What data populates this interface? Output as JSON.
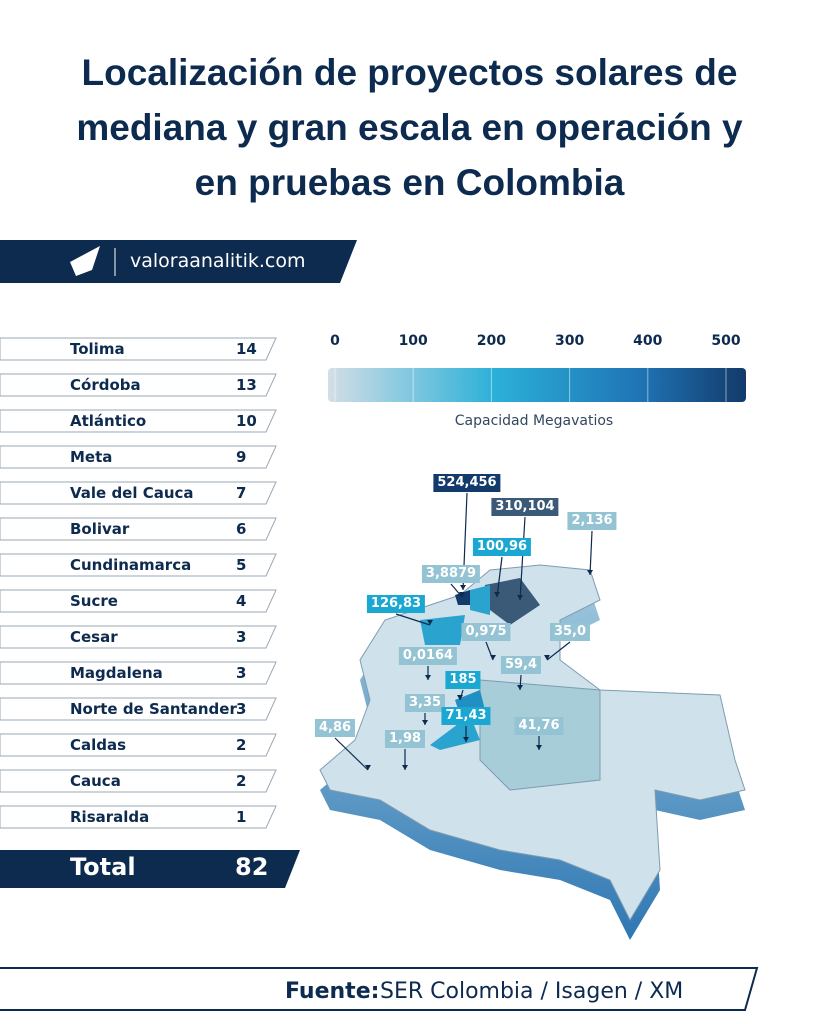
{
  "header": {
    "title": [
      "Localización de proyectos solares de",
      "mediana y gran escala en operación y",
      "en pruebas en Colombia"
    ],
    "brand": "valoraanalitik.com"
  },
  "table": {
    "rows": [
      [
        "Tolima",
        "14"
      ],
      [
        "Córdoba",
        "13"
      ],
      [
        "Atlántico",
        "10"
      ],
      [
        "Meta",
        "9"
      ],
      [
        "Vale del Cauca",
        "7"
      ],
      [
        "Bolivar",
        "6"
      ],
      [
        "Cundinamarca",
        "5"
      ],
      [
        "Sucre",
        "4"
      ],
      [
        "Cesar",
        "3"
      ],
      [
        "Magdalena",
        "3"
      ],
      [
        "Norte de Santander",
        "3"
      ],
      [
        "Caldas",
        "2"
      ],
      [
        "Cauca",
        "2"
      ],
      [
        "Risaralda",
        "1"
      ]
    ],
    "total": [
      "Total",
      "82"
    ]
  },
  "scale": {
    "ticks": [
      "0",
      "100",
      "200",
      "300",
      "400",
      "500"
    ],
    "label": "Capacidad Megavatios"
  },
  "map": {
    "labels": [
      "524,456",
      "310,104",
      "2,136",
      "100,96",
      "3,8879",
      "126,83",
      "0,975",
      "35,0",
      "0,0164",
      "59,4",
      "185",
      "3,35",
      "71,43",
      "41,76",
      "4,86",
      "1,98"
    ]
  },
  "footer": {
    "label": "Fuente:",
    "text": "SER Colombia / Isagen / XM"
  }
}
